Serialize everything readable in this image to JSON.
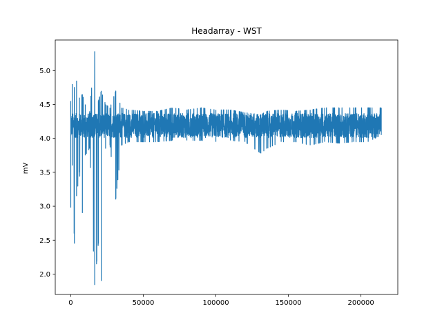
{
  "chart_data": {
    "type": "line",
    "title": "Headarray - WST",
    "xlabel": "",
    "ylabel": "mV",
    "xlim": [
      -10700,
      225400
    ],
    "ylim": [
      1.7,
      5.45
    ],
    "x_ticks": [
      0,
      50000,
      100000,
      150000,
      200000
    ],
    "x_tick_labels": [
      "0",
      "50000",
      "100000",
      "150000",
      "200000"
    ],
    "y_ticks": [
      2.0,
      2.5,
      3.0,
      3.5,
      4.0,
      4.5,
      5.0
    ],
    "y_tick_labels": [
      "2.0",
      "2.5",
      "3.0",
      "3.5",
      "4.0",
      "4.5",
      "5.0"
    ],
    "grid": false,
    "legend": "none",
    "series_color": "#1f77b4",
    "x_range": [
      0,
      214000
    ],
    "envelope": [
      {
        "x": 0,
        "min": 2.98,
        "max": 4.55
      },
      {
        "x": 1000,
        "min": 3.6,
        "max": 4.8
      },
      {
        "x": 2500,
        "min": 2.45,
        "max": 4.75
      },
      {
        "x": 4000,
        "min": 3.15,
        "max": 4.85
      },
      {
        "x": 6000,
        "min": 3.5,
        "max": 4.6
      },
      {
        "x": 8000,
        "min": 2.9,
        "max": 4.65
      },
      {
        "x": 10000,
        "min": 3.75,
        "max": 4.5
      },
      {
        "x": 13000,
        "min": 3.85,
        "max": 4.4
      },
      {
        "x": 16500,
        "min": 1.84,
        "max": 5.28
      },
      {
        "x": 19000,
        "min": 2.45,
        "max": 4.55
      },
      {
        "x": 21000,
        "min": 1.9,
        "max": 4.7
      },
      {
        "x": 24000,
        "min": 3.85,
        "max": 4.5
      },
      {
        "x": 27000,
        "min": 3.9,
        "max": 4.45
      },
      {
        "x": 31000,
        "min": 3.1,
        "max": 4.7
      },
      {
        "x": 35000,
        "min": 3.9,
        "max": 4.45
      },
      {
        "x": 40000,
        "min": 3.95,
        "max": 4.42
      },
      {
        "x": 50000,
        "min": 3.95,
        "max": 4.4
      },
      {
        "x": 60000,
        "min": 3.95,
        "max": 4.4
      },
      {
        "x": 70000,
        "min": 3.97,
        "max": 4.45
      },
      {
        "x": 80000,
        "min": 3.97,
        "max": 4.42
      },
      {
        "x": 90000,
        "min": 3.97,
        "max": 4.45
      },
      {
        "x": 100000,
        "min": 3.95,
        "max": 4.42
      },
      {
        "x": 110000,
        "min": 3.97,
        "max": 4.42
      },
      {
        "x": 120000,
        "min": 3.95,
        "max": 4.38
      },
      {
        "x": 131000,
        "min": 3.78,
        "max": 4.35
      },
      {
        "x": 135000,
        "min": 3.85,
        "max": 4.4
      },
      {
        "x": 145000,
        "min": 3.95,
        "max": 4.42
      },
      {
        "x": 155000,
        "min": 3.95,
        "max": 4.4
      },
      {
        "x": 165000,
        "min": 3.9,
        "max": 4.42
      },
      {
        "x": 175000,
        "min": 3.95,
        "max": 4.45
      },
      {
        "x": 185000,
        "min": 3.93,
        "max": 4.45
      },
      {
        "x": 195000,
        "min": 3.95,
        "max": 4.45
      },
      {
        "x": 205000,
        "min": 3.95,
        "max": 4.45
      },
      {
        "x": 214000,
        "min": 4.05,
        "max": 4.45
      }
    ]
  }
}
